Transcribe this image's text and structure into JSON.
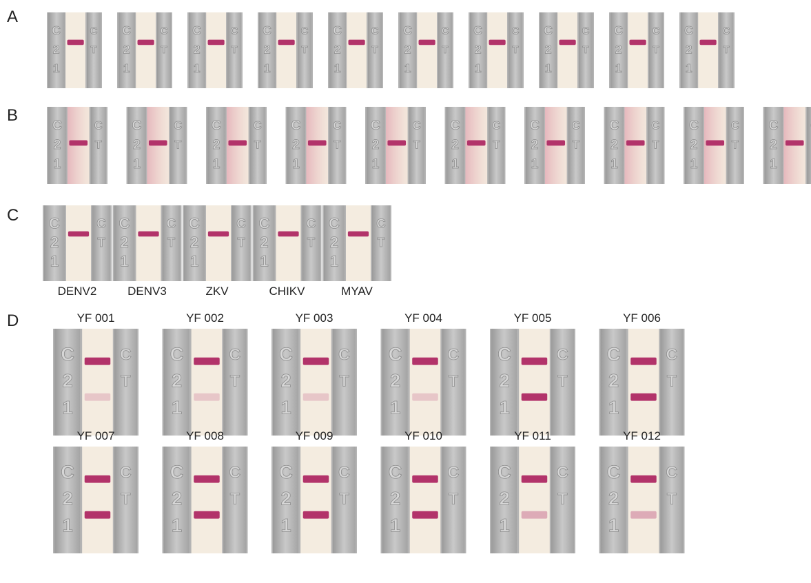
{
  "panels": [
    {
      "label": "A"
    },
    {
      "label": "B"
    },
    {
      "label": "C",
      "strips": [
        "DENV2",
        "DENV3",
        "ZKV",
        "CHIKV",
        "MYAV"
      ]
    },
    {
      "label": "D",
      "samples": [
        "YF 001",
        "YF 002",
        "YF 003",
        "YF 004",
        "YF 005",
        "YF 006",
        "YF 007",
        "YF 008",
        "YF 009",
        "YF 010",
        "YF 011",
        "YF 012"
      ]
    }
  ],
  "strip_marks": {
    "left": [
      "C",
      "2",
      "1"
    ],
    "right": [
      "C",
      "T"
    ]
  }
}
